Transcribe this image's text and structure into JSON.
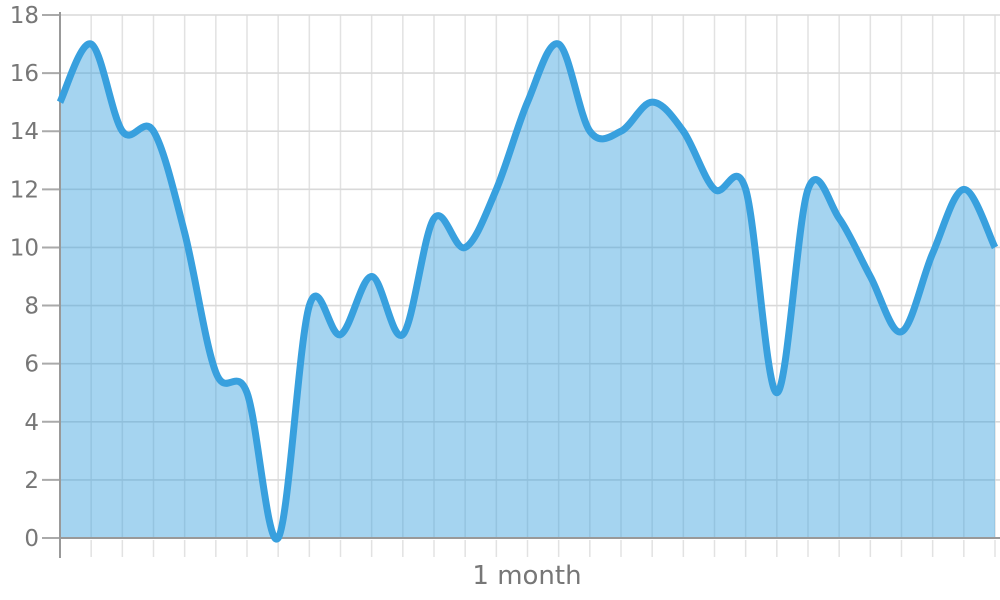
{
  "chart_data": {
    "type": "area",
    "curve": "smooth-spline",
    "title": "",
    "xlabel": "1 month",
    "ylabel": "",
    "x_unit": "day",
    "x": [
      0,
      1,
      2,
      3,
      4,
      5,
      6,
      7,
      8,
      9,
      10,
      11,
      12,
      13,
      14,
      15,
      16,
      17,
      18,
      19,
      20,
      21,
      22,
      23,
      24,
      25,
      26,
      27,
      28,
      29,
      30
    ],
    "values": [
      15,
      17,
      14,
      14,
      10.5,
      5.7,
      5,
      0,
      8,
      7,
      9,
      7,
      11,
      10,
      12,
      15,
      17,
      14,
      14,
      15,
      14,
      12,
      12,
      5,
      12,
      11,
      9,
      7.1,
      9.8,
      12,
      10
    ],
    "ylim": [
      0,
      18
    ],
    "y_ticks": [
      0,
      2,
      4,
      6,
      8,
      10,
      12,
      14,
      16,
      18
    ],
    "x_gridline_count": 31,
    "grid": "on",
    "legend": "none",
    "colors": {
      "line": "#38a0de",
      "fill_opacity": 0.45,
      "grid_vertical": "#e2e2e2",
      "grid_horizontal": "#d9d9d9",
      "axis": "#999999",
      "tick_dash": "#aaaaaa",
      "label_text": "#777777"
    }
  }
}
